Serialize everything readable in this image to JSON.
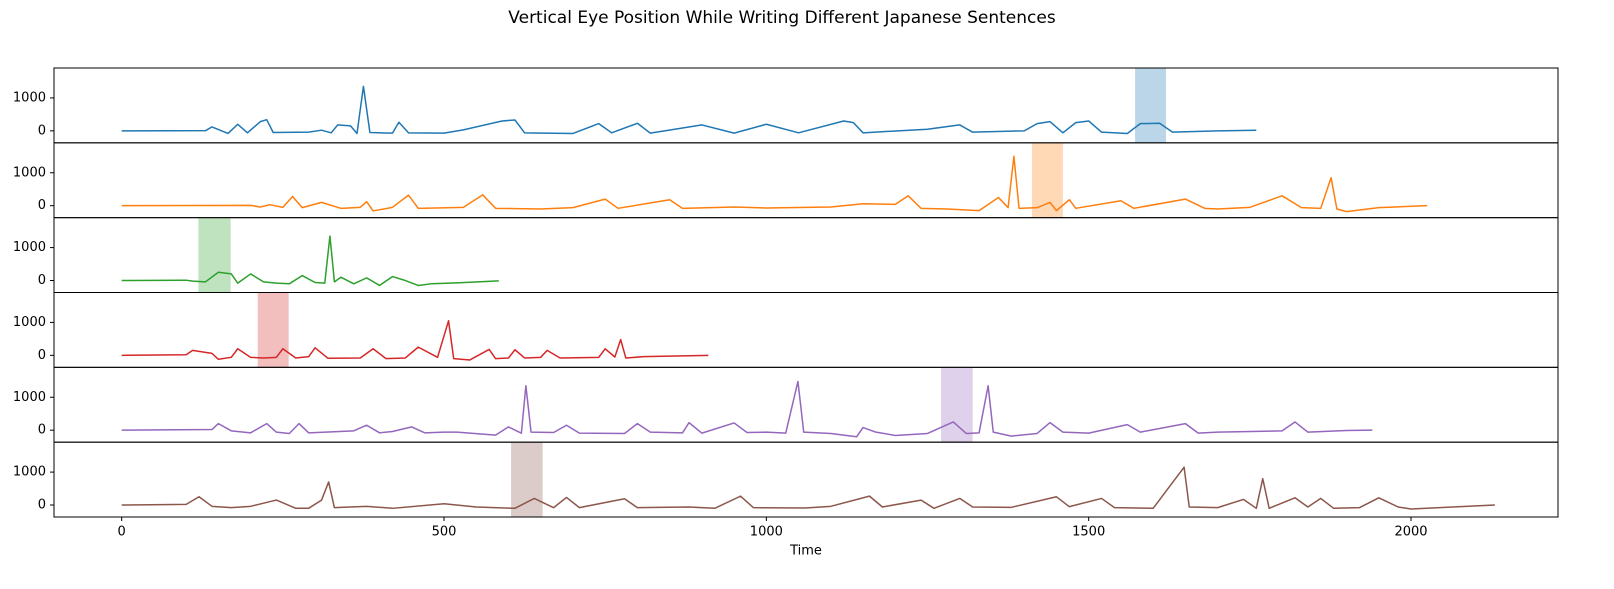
{
  "chart_data": {
    "type": "line",
    "title": "Vertical Eye Position While Writing Different Japanese Sentences",
    "xlabel": "Time",
    "xlim": [
      -105,
      2228
    ],
    "xticks": [
      0,
      500,
      1000,
      1500,
      2000
    ],
    "ylim": [
      -364,
      1909
    ],
    "yticks": [
      0,
      1000
    ],
    "series": [
      {
        "color": "#1f77b4",
        "span": [
          1572,
          1620
        ],
        "x": [
          0,
          130,
          140,
          165,
          180,
          195,
          215,
          225,
          235,
          290,
          310,
          325,
          335,
          355,
          365,
          375,
          385,
          420,
          430,
          445,
          500,
          530,
          590,
          610,
          625,
          700,
          740,
          760,
          800,
          820,
          900,
          950,
          1000,
          1050,
          1120,
          1135,
          1150,
          1250,
          1300,
          1320,
          1400,
          1420,
          1440,
          1460,
          1480,
          1500,
          1520,
          1560,
          1580,
          1610,
          1630,
          1700,
          1760
        ],
        "values": [
          0,
          5,
          120,
          -80,
          200,
          -60,
          280,
          340,
          -50,
          -40,
          20,
          -60,
          180,
          150,
          -80,
          1350,
          -50,
          -70,
          260,
          -60,
          -70,
          30,
          300,
          330,
          -60,
          -80,
          220,
          -60,
          230,
          -70,
          180,
          -70,
          200,
          -60,
          300,
          250,
          -60,
          50,
          180,
          -40,
          0,
          220,
          280,
          -60,
          250,
          300,
          -40,
          -80,
          220,
          230,
          -40,
          0,
          20
        ]
      },
      {
        "color": "#ff7f0e",
        "span": [
          1412,
          1460
        ],
        "x": [
          0,
          200,
          215,
          230,
          250,
          265,
          280,
          310,
          340,
          370,
          380,
          390,
          420,
          445,
          460,
          530,
          560,
          580,
          650,
          700,
          750,
          770,
          850,
          870,
          950,
          1000,
          1100,
          1150,
          1200,
          1220,
          1240,
          1280,
          1330,
          1360,
          1375,
          1384,
          1392,
          1420,
          1440,
          1450,
          1470,
          1480,
          1550,
          1570,
          1650,
          1680,
          1700,
          1750,
          1800,
          1830,
          1860,
          1876,
          1885,
          1900,
          1950,
          2025
        ],
        "values": [
          0,
          10,
          -40,
          30,
          -50,
          280,
          -60,
          100,
          -80,
          -50,
          120,
          -160,
          -50,
          320,
          -80,
          -50,
          330,
          -80,
          -100,
          -60,
          200,
          -80,
          180,
          -80,
          -40,
          -70,
          -40,
          60,
          40,
          300,
          -80,
          -100,
          -150,
          250,
          -60,
          1500,
          -80,
          -60,
          100,
          -150,
          180,
          -80,
          150,
          -80,
          200,
          -80,
          -100,
          -50,
          300,
          -60,
          -80,
          850,
          -100,
          -180,
          -60,
          0
        ]
      },
      {
        "color": "#2ca02c",
        "span": [
          119,
          169
        ],
        "x": [
          0,
          100,
          110,
          130,
          150,
          170,
          180,
          200,
          220,
          240,
          260,
          280,
          300,
          315,
          323,
          330,
          340,
          360,
          380,
          400,
          420,
          440,
          460,
          480,
          520,
          585
        ],
        "values": [
          0,
          10,
          -20,
          -40,
          250,
          200,
          -80,
          200,
          -40,
          -80,
          -100,
          150,
          -60,
          -80,
          1350,
          -40,
          100,
          -100,
          80,
          -150,
          120,
          0,
          -150,
          -100,
          -70,
          -10
        ]
      },
      {
        "color": "#d62728",
        "span": [
          211,
          259
        ],
        "x": [
          0,
          100,
          110,
          140,
          150,
          170,
          180,
          200,
          220,
          240,
          250,
          270,
          290,
          300,
          320,
          370,
          390,
          410,
          440,
          460,
          490,
          507,
          515,
          540,
          570,
          580,
          600,
          610,
          625,
          650,
          660,
          680,
          740,
          750,
          765,
          774,
          782,
          810,
          910
        ],
        "values": [
          0,
          20,
          150,
          60,
          -120,
          -60,
          200,
          -60,
          -80,
          -60,
          200,
          -80,
          -40,
          230,
          -90,
          -80,
          200,
          -100,
          -80,
          250,
          -60,
          1050,
          -100,
          -140,
          180,
          -100,
          -80,
          170,
          -80,
          -60,
          150,
          -80,
          -60,
          200,
          -50,
          480,
          -80,
          -40,
          0
        ]
      },
      {
        "color": "#9467bd",
        "span": [
          1271,
          1320
        ],
        "x": [
          0,
          140,
          150,
          170,
          200,
          225,
          240,
          260,
          275,
          290,
          360,
          380,
          400,
          420,
          450,
          470,
          500,
          520,
          580,
          600,
          620,
          627,
          635,
          670,
          690,
          710,
          780,
          800,
          820,
          870,
          880,
          900,
          950,
          970,
          1000,
          1030,
          1049,
          1058,
          1100,
          1140,
          1150,
          1170,
          1200,
          1250,
          1290,
          1310,
          1330,
          1344,
          1352,
          1380,
          1420,
          1440,
          1460,
          1500,
          1560,
          1580,
          1650,
          1670,
          1700,
          1800,
          1820,
          1840,
          1900,
          1940
        ],
        "values": [
          0,
          20,
          200,
          -20,
          -80,
          200,
          -60,
          -100,
          200,
          -80,
          -20,
          150,
          -80,
          -40,
          100,
          -80,
          -60,
          -60,
          -150,
          100,
          -90,
          1350,
          -60,
          -70,
          150,
          -90,
          -100,
          200,
          -60,
          -80,
          230,
          -90,
          220,
          -70,
          -60,
          -90,
          1480,
          -60,
          -100,
          -200,
          80,
          -60,
          -160,
          -100,
          250,
          -100,
          -80,
          1350,
          -60,
          -180,
          -100,
          230,
          -60,
          -90,
          170,
          -60,
          200,
          -90,
          -60,
          -20,
          250,
          -60,
          -10,
          0
        ]
      },
      {
        "color": "#8c564b",
        "span": [
          604,
          653
        ],
        "x": [
          0,
          100,
          120,
          140,
          170,
          200,
          240,
          270,
          290,
          310,
          321,
          330,
          380,
          420,
          500,
          550,
          610,
          640,
          670,
          690,
          710,
          780,
          800,
          880,
          920,
          960,
          980,
          1060,
          1100,
          1160,
          1180,
          1240,
          1260,
          1300,
          1320,
          1380,
          1450,
          1470,
          1520,
          1540,
          1600,
          1648,
          1656,
          1700,
          1740,
          1760,
          1770,
          1780,
          1820,
          1840,
          1860,
          1880,
          1920,
          1950,
          1980,
          2000,
          2130
        ],
        "values": [
          0,
          20,
          250,
          -40,
          -80,
          -40,
          150,
          -100,
          -100,
          150,
          700,
          -80,
          -40,
          -100,
          40,
          -60,
          -100,
          200,
          -80,
          230,
          -80,
          190,
          -80,
          -60,
          -100,
          270,
          -80,
          -90,
          -40,
          270,
          -60,
          150,
          -100,
          200,
          -60,
          -70,
          250,
          -50,
          200,
          -80,
          -100,
          1150,
          -60,
          -80,
          170,
          -100,
          800,
          -100,
          220,
          -60,
          200,
          -100,
          -80,
          220,
          -60,
          -120,
          0
        ]
      }
    ]
  }
}
